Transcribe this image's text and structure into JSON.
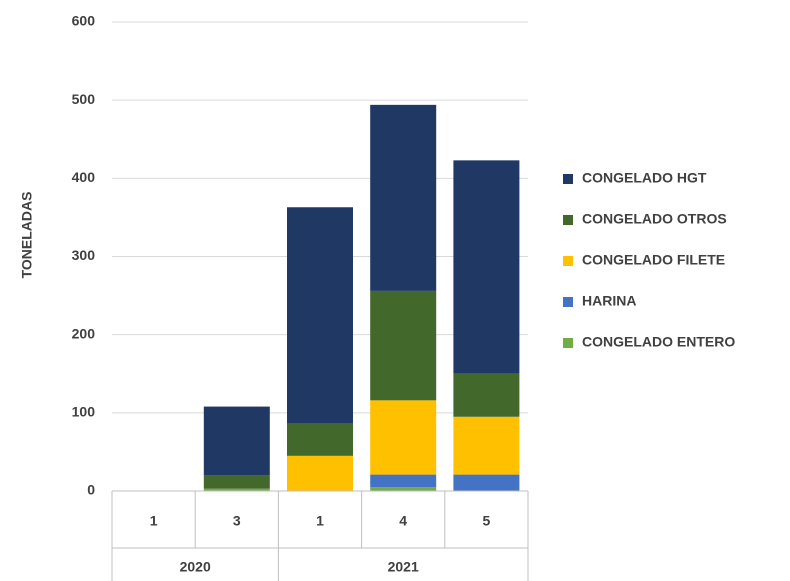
{
  "chart_data": {
    "type": "stacked_bar",
    "y_label": "TONELADAS",
    "categories": [
      "1",
      "3",
      "1",
      "4",
      "5"
    ],
    "groups": [
      "2020",
      "2020",
      "2021",
      "2021",
      "2021"
    ],
    "series": [
      {
        "name": "CONGELADO HGT",
        "color": "#203864",
        "values": [
          0,
          88,
          276,
          238,
          273
        ]
      },
      {
        "name": "CONGELADO OTROS",
        "color": "#43682b",
        "values": [
          0,
          17,
          42,
          140,
          55
        ]
      },
      {
        "name": "CONGELADO FILETE",
        "color": "#ffc000",
        "values": [
          0,
          0,
          45,
          95,
          74
        ]
      },
      {
        "name": "HARINA",
        "color": "#4472c4",
        "values": [
          0,
          0,
          0,
          16,
          21
        ]
      },
      {
        "name": "CONGELADO ENTERO",
        "color": "#70ad47",
        "values": [
          0,
          3,
          0,
          5,
          0
        ]
      }
    ],
    "ylim": [
      0,
      600
    ],
    "yticks": [
      0,
      100,
      200,
      300,
      400,
      500,
      600
    ],
    "grid": true,
    "legend": "right"
  }
}
